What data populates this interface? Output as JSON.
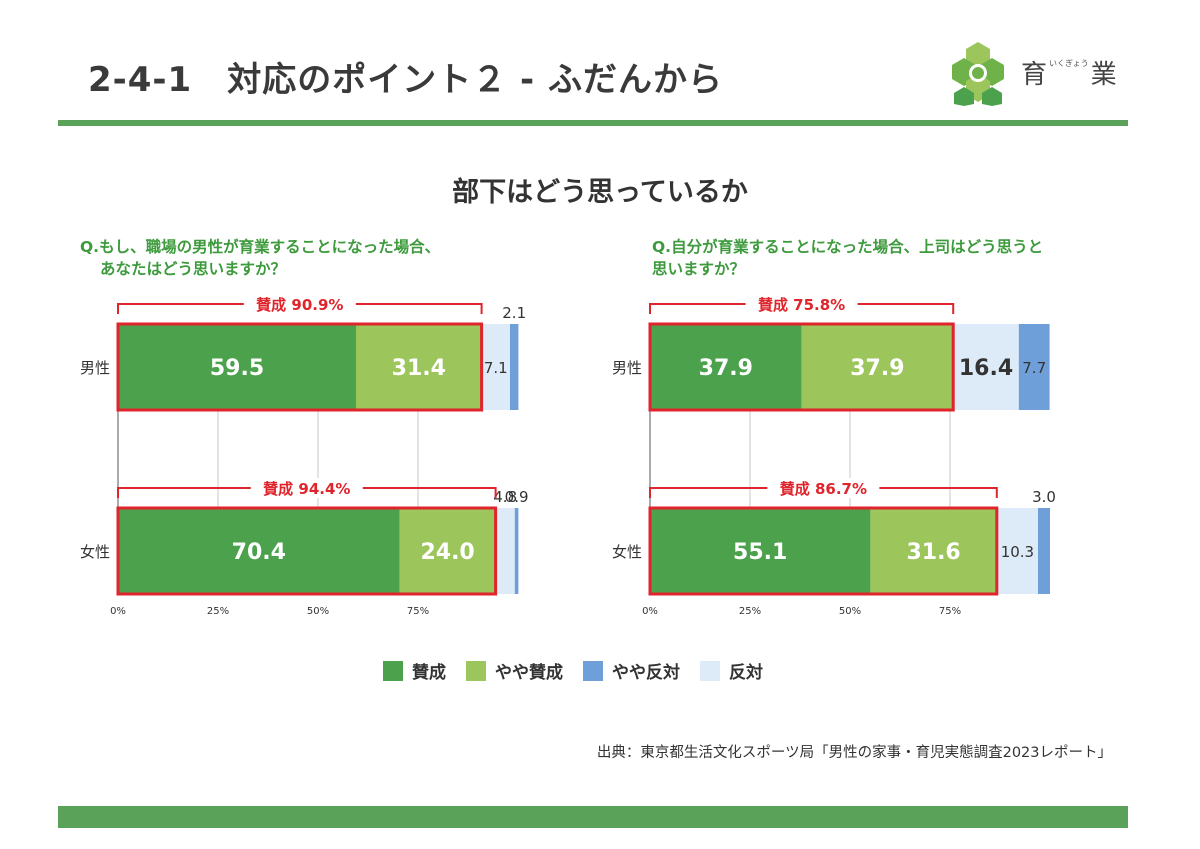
{
  "header": {
    "title": "2-4-1　対応のポイント２ - ふだんから",
    "logo_main_1": "育",
    "logo_ruby": "いくぎょう",
    "logo_main_2": "業"
  },
  "section_title": "部下はどう思っているか",
  "colors": {
    "sansei": "#4ca24c",
    "yaya_sansei": "#9cc55b",
    "yaya_hantai": "#6f9fd8",
    "hantai": "#ddeaf8",
    "highlight": "#e0242b",
    "green_text": "#3d9a3d"
  },
  "legend": [
    {
      "label": "賛成",
      "color": "#4ca24c"
    },
    {
      "label": "やや賛成",
      "color": "#9cc55b"
    },
    {
      "label": "やや反対",
      "color": "#6f9fd8"
    },
    {
      "label": "反対",
      "color": "#ddeaf8"
    }
  ],
  "source": "出典：東京都生活文化スポーツ局「男性の家事・育児実態調査2023レポート」",
  "chart_data": [
    {
      "type": "bar",
      "orientation": "horizontal",
      "stacked": true,
      "question_line1": "Q.もし、職場の男性が育業することになった場合、",
      "question_line2": "あなたはどう思いますか？",
      "categories": [
        "男性",
        "女性"
      ],
      "series_order": [
        "賛成",
        "やや賛成",
        "反対",
        "やや反対"
      ],
      "rows": [
        {
          "label": "男性",
          "values": [
            59.5,
            31.4,
            7.1,
            2.1
          ],
          "labels": [
            "59.5",
            "31.4",
            "7.1",
            "2.1"
          ],
          "agree_label": "賛成 90.9%",
          "agree_total": 90.9
        },
        {
          "label": "女性",
          "values": [
            70.4,
            24.0,
            4.8,
            0.9
          ],
          "labels": [
            "70.4",
            "24.0",
            "4.8",
            "0.9"
          ],
          "agree_label": "賛成 94.4%",
          "agree_total": 94.4
        }
      ],
      "xticks": [
        "0%",
        "25%",
        "50%",
        "75%"
      ],
      "xlim": [
        0,
        100
      ]
    },
    {
      "type": "bar",
      "orientation": "horizontal",
      "stacked": true,
      "question_line1": "Q.自分が育業することになった場合、上司はどう思うと",
      "question_line2": "思いますか？",
      "categories": [
        "男性",
        "女性"
      ],
      "series_order": [
        "賛成",
        "やや賛成",
        "反対",
        "やや反対"
      ],
      "rows": [
        {
          "label": "男性",
          "values": [
            37.9,
            37.9,
            16.4,
            7.7
          ],
          "labels": [
            "37.9",
            "37.9",
            "16.4",
            "7.7"
          ],
          "agree_label": "賛成 75.8%",
          "agree_total": 75.8
        },
        {
          "label": "女性",
          "values": [
            55.1,
            31.6,
            10.3,
            3.0
          ],
          "labels": [
            "55.1",
            "31.6",
            "10.3",
            "3.0"
          ],
          "agree_label": "賛成 86.7%",
          "agree_total": 86.7
        }
      ],
      "xticks": [
        "0%",
        "25%",
        "50%",
        "75%"
      ],
      "xlim": [
        0,
        100
      ]
    }
  ]
}
